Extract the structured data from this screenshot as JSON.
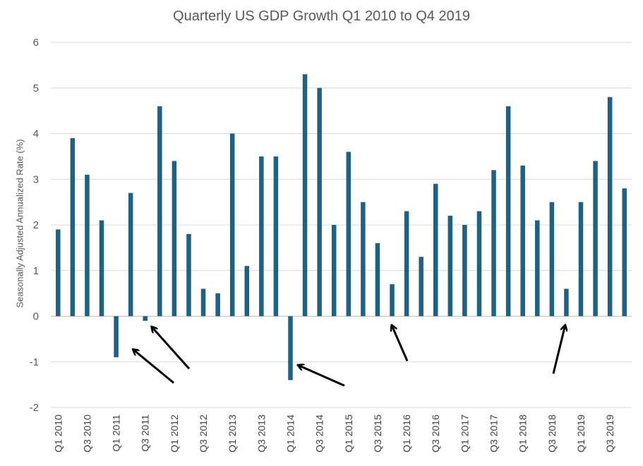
{
  "chart_data": {
    "type": "bar",
    "title": "Quarterly US GDP Growth Q1 2010 to Q4 2019",
    "ylabel": "Seasonally Adjusted Annualized Rate (%)",
    "xlabel": "",
    "ylim": [
      -2,
      6
    ],
    "yticks": [
      -2,
      -1,
      0,
      1,
      2,
      3,
      4,
      5,
      6
    ],
    "grid": true,
    "legend": "none",
    "bar_color": "#1d6183",
    "categories": [
      "Q1 2010",
      "Q2 2010",
      "Q3 2010",
      "Q4 2010",
      "Q1 2011",
      "Q2 2011",
      "Q3 2011",
      "Q4 2011",
      "Q1 2012",
      "Q2 2012",
      "Q3 2012",
      "Q4 2012",
      "Q1 2013",
      "Q2 2013",
      "Q3 2013",
      "Q4 2013",
      "Q1 2014",
      "Q2 2014",
      "Q3 2014",
      "Q4 2014",
      "Q1 2015",
      "Q2 2015",
      "Q3 2015",
      "Q4 2015",
      "Q1 2016",
      "Q2 2016",
      "Q3 2016",
      "Q4 2016",
      "Q1 2017",
      "Q2 2017",
      "Q3 2017",
      "Q4 2017",
      "Q1 2018",
      "Q2 2018",
      "Q3 2018",
      "Q4 2018",
      "Q1 2019",
      "Q2 2019",
      "Q3 2019",
      "Q4 2019"
    ],
    "tick_labels": [
      "Q1 2010",
      "Q3 2010",
      "Q1 2011",
      "Q3 2011",
      "Q1 2012",
      "Q3 2012",
      "Q1 2013",
      "Q3 2013",
      "Q1 2014",
      "Q3 2014",
      "Q1 2015",
      "Q3 2015",
      "Q1 2016",
      "Q3 2016",
      "Q1 2017",
      "Q3 2017",
      "Q1 2018",
      "Q3 2018",
      "Q1 2019",
      "Q3 2019"
    ],
    "values": [
      1.9,
      3.9,
      3.1,
      2.1,
      -0.9,
      2.7,
      -0.1,
      4.6,
      3.4,
      1.8,
      0.6,
      0.5,
      4.0,
      1.1,
      3.5,
      3.5,
      -1.4,
      5.3,
      5.0,
      2.0,
      3.6,
      2.5,
      1.6,
      0.7,
      2.3,
      1.3,
      2.9,
      2.2,
      2.0,
      2.3,
      3.2,
      4.6,
      3.3,
      2.1,
      2.5,
      0.6,
      2.5,
      3.4,
      4.8,
      2.8
    ],
    "annotations": [
      {
        "type": "arrow",
        "points_to": "Q1 2011"
      },
      {
        "type": "arrow",
        "points_to": "Q3 2011"
      },
      {
        "type": "arrow",
        "points_to": "Q1 2014"
      },
      {
        "type": "arrow",
        "points_to": "Q4 2015"
      },
      {
        "type": "arrow",
        "points_to": "Q4 2018"
      }
    ]
  }
}
